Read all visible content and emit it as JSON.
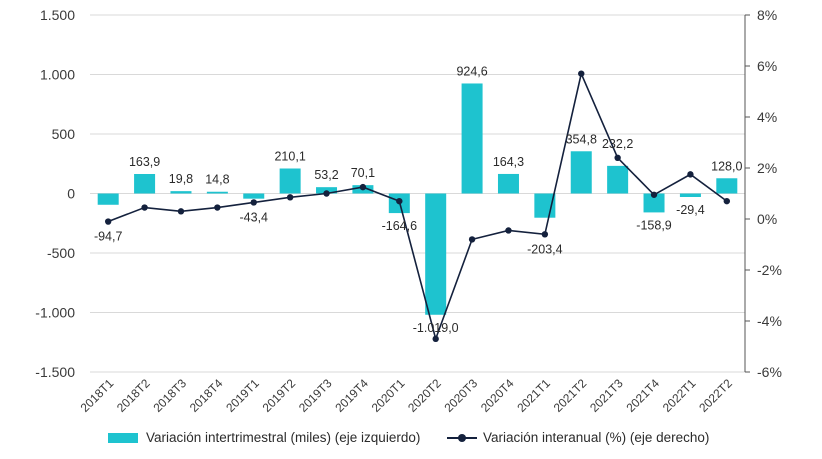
{
  "chart_data": {
    "type": "bar+line",
    "title": "",
    "categories": [
      "2018T1",
      "2018T2",
      "2018T3",
      "2018T4",
      "2019T1",
      "2019T2",
      "2019T3",
      "2019T4",
      "2020T1",
      "2020T2",
      "2020T3",
      "2020T4",
      "2021T1",
      "2021T2",
      "2021T3",
      "2021T4",
      "2022T1",
      "2022T2"
    ],
    "series": [
      {
        "name": "Variación intertrimestral (miles) (eje izquierdo)",
        "type": "bar",
        "axis": "left",
        "color": "#1ec3cf",
        "values": [
          -94.7,
          163.9,
          19.8,
          14.8,
          -43.4,
          210.1,
          53.2,
          70.1,
          -164.6,
          -1019.0,
          924.6,
          164.3,
          -203.4,
          354.8,
          232.2,
          -158.9,
          -29.4,
          128.0
        ],
        "labels": [
          "-94,7",
          "163,9",
          "19,8",
          "14,8",
          "-43,4",
          "210,1",
          "53,2",
          "70,1",
          "-164,6",
          "-1.019,0",
          "924,6",
          "164,3",
          "-203,4",
          "354,8",
          "232,2",
          "-158,9",
          "-29,4",
          "128,0"
        ]
      },
      {
        "name": "Variación interanual (%) (eje derecho)",
        "type": "line",
        "axis": "right",
        "color": "#14213d",
        "values": [
          -0.1,
          0.45,
          0.3,
          0.45,
          0.65,
          0.85,
          1.0,
          1.25,
          0.7,
          -4.7,
          -0.8,
          -0.45,
          -0.6,
          5.7,
          2.4,
          0.95,
          1.75,
          0.7
        ]
      }
    ],
    "y_left": {
      "min": -1500,
      "max": 1500,
      "ticks": [
        1500,
        1000,
        500,
        0,
        -500,
        -1000,
        -1500
      ],
      "tick_labels": [
        "1.500",
        "1.000",
        "500",
        "0",
        "-500",
        "-1.000",
        "-1.500"
      ]
    },
    "y_right": {
      "min": -6,
      "max": 8,
      "ticks": [
        8,
        6,
        4,
        2,
        0,
        -2,
        -4,
        -6
      ],
      "tick_labels": [
        "8%",
        "6%",
        "4%",
        "2%",
        "0%",
        "-2%",
        "-4%",
        "-6%"
      ]
    },
    "grid": true,
    "legend_position": "bottom"
  },
  "legend": {
    "bar_label": "Variación intertrimestral (miles) (eje izquierdo)",
    "line_label": "Variación interanual (%) (eje derecho)"
  }
}
